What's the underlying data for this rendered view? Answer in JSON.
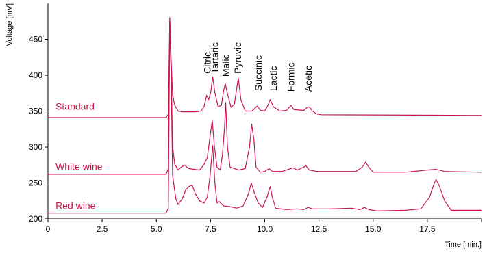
{
  "chart_data": {
    "type": "line",
    "title": "",
    "xlabel": "Time [min.]",
    "ylabel": "Voltage [mV]",
    "xlim": [
      0,
      20
    ],
    "ylim": [
      200,
      500
    ],
    "x_ticks": [
      0,
      2.5,
      5.0,
      7.5,
      10.0,
      12.5,
      15.0,
      17.5
    ],
    "x_tick_labels": [
      "0",
      "2.5",
      "5.0",
      "7.5",
      "10.0",
      "12.5",
      "15.0",
      "17.5"
    ],
    "y_ticks": [
      200,
      250,
      300,
      350,
      400,
      450
    ],
    "y_tick_labels": [
      "200",
      "250",
      "300",
      "350",
      "400",
      "450"
    ],
    "grid": false,
    "line_color": "#c8174a",
    "peak_labels": [
      {
        "text": "Citric",
        "x": 7.35,
        "y": 402
      },
      {
        "text": "Tartaric",
        "x": 7.7,
        "y": 402
      },
      {
        "text": "Malic",
        "x": 8.2,
        "y": 398
      },
      {
        "text": "Pyruvic",
        "x": 8.75,
        "y": 402
      },
      {
        "text": "Succinic",
        "x": 9.7,
        "y": 378
      },
      {
        "text": "Lactic",
        "x": 10.4,
        "y": 378
      },
      {
        "text": "Formic",
        "x": 11.2,
        "y": 377
      },
      {
        "text": "Acetic",
        "x": 12.0,
        "y": 377
      }
    ],
    "series": [
      {
        "name": "Standard",
        "label_pos": [
          0.35,
          352
        ],
        "baseline_start": 341,
        "baseline_end": 344,
        "points": [
          [
            0.0,
            341
          ],
          [
            5.45,
            341
          ],
          [
            5.55,
            346
          ],
          [
            5.62,
            480
          ],
          [
            5.67,
            430
          ],
          [
            5.75,
            372
          ],
          [
            5.85,
            358
          ],
          [
            6.0,
            350
          ],
          [
            6.2,
            349
          ],
          [
            6.8,
            349
          ],
          [
            7.05,
            350
          ],
          [
            7.2,
            356
          ],
          [
            7.32,
            372
          ],
          [
            7.42,
            366
          ],
          [
            7.52,
            378
          ],
          [
            7.6,
            398
          ],
          [
            7.7,
            376
          ],
          [
            7.85,
            356
          ],
          [
            8.0,
            358
          ],
          [
            8.1,
            378
          ],
          [
            8.18,
            388
          ],
          [
            8.3,
            372
          ],
          [
            8.45,
            355
          ],
          [
            8.6,
            360
          ],
          [
            8.7,
            380
          ],
          [
            8.78,
            396
          ],
          [
            8.9,
            366
          ],
          [
            9.1,
            350
          ],
          [
            9.4,
            350
          ],
          [
            9.55,
            354
          ],
          [
            9.65,
            357
          ],
          [
            9.8,
            351
          ],
          [
            10.0,
            350
          ],
          [
            10.15,
            358
          ],
          [
            10.25,
            366
          ],
          [
            10.4,
            356
          ],
          [
            10.7,
            350
          ],
          [
            11.0,
            351
          ],
          [
            11.15,
            356
          ],
          [
            11.22,
            358
          ],
          [
            11.35,
            352
          ],
          [
            11.8,
            351
          ],
          [
            11.95,
            355
          ],
          [
            12.05,
            356
          ],
          [
            12.2,
            350
          ],
          [
            12.4,
            346
          ],
          [
            12.6,
            345
          ],
          [
            20.0,
            344
          ]
        ]
      },
      {
        "name": "White wine",
        "label_pos": [
          0.35,
          268
        ],
        "baseline_start": 262,
        "baseline_end": 265,
        "points": [
          [
            0.0,
            262
          ],
          [
            5.45,
            262
          ],
          [
            5.55,
            270
          ],
          [
            5.62,
            478
          ],
          [
            5.67,
            420
          ],
          [
            5.75,
            300
          ],
          [
            5.85,
            276
          ],
          [
            6.0,
            268
          ],
          [
            6.15,
            272
          ],
          [
            6.3,
            275
          ],
          [
            6.5,
            270
          ],
          [
            7.0,
            268
          ],
          [
            7.2,
            276
          ],
          [
            7.35,
            285
          ],
          [
            7.5,
            320
          ],
          [
            7.58,
            337
          ],
          [
            7.68,
            300
          ],
          [
            7.8,
            272
          ],
          [
            7.95,
            268
          ],
          [
            8.05,
            290
          ],
          [
            8.15,
            328
          ],
          [
            8.2,
            362
          ],
          [
            8.28,
            300
          ],
          [
            8.4,
            272
          ],
          [
            8.8,
            268
          ],
          [
            9.1,
            270
          ],
          [
            9.3,
            300
          ],
          [
            9.4,
            332
          ],
          [
            9.5,
            310
          ],
          [
            9.6,
            272
          ],
          [
            9.8,
            265
          ],
          [
            10.0,
            266
          ],
          [
            10.2,
            270
          ],
          [
            10.35,
            266
          ],
          [
            10.8,
            266
          ],
          [
            11.3,
            271
          ],
          [
            11.5,
            268
          ],
          [
            11.8,
            272
          ],
          [
            11.9,
            274
          ],
          [
            12.05,
            268
          ],
          [
            12.4,
            266
          ],
          [
            14.2,
            266
          ],
          [
            14.5,
            272
          ],
          [
            14.65,
            279
          ],
          [
            14.8,
            272
          ],
          [
            15.0,
            265
          ],
          [
            16.5,
            265
          ],
          [
            17.5,
            268
          ],
          [
            17.9,
            269
          ],
          [
            18.3,
            266
          ],
          [
            20.0,
            265
          ]
        ]
      },
      {
        "name": "Red wine",
        "label_pos": [
          0.35,
          214
        ],
        "baseline_start": 208,
        "baseline_end": 212,
        "points": [
          [
            0.0,
            208
          ],
          [
            5.45,
            208
          ],
          [
            5.55,
            215
          ],
          [
            5.62,
            476
          ],
          [
            5.68,
            400
          ],
          [
            5.75,
            260
          ],
          [
            5.9,
            228
          ],
          [
            6.0,
            220
          ],
          [
            6.2,
            228
          ],
          [
            6.35,
            240
          ],
          [
            6.5,
            245
          ],
          [
            6.65,
            247
          ],
          [
            6.8,
            235
          ],
          [
            7.0,
            225
          ],
          [
            7.2,
            222
          ],
          [
            7.35,
            230
          ],
          [
            7.48,
            260
          ],
          [
            7.6,
            302
          ],
          [
            7.7,
            250
          ],
          [
            7.8,
            222
          ],
          [
            7.9,
            224
          ],
          [
            8.1,
            218
          ],
          [
            8.4,
            217
          ],
          [
            8.7,
            215
          ],
          [
            9.0,
            218
          ],
          [
            9.25,
            235
          ],
          [
            9.38,
            250
          ],
          [
            9.5,
            238
          ],
          [
            9.7,
            222
          ],
          [
            9.9,
            216
          ],
          [
            10.1,
            230
          ],
          [
            10.25,
            245
          ],
          [
            10.35,
            230
          ],
          [
            10.5,
            215
          ],
          [
            11.0,
            213
          ],
          [
            11.5,
            214
          ],
          [
            11.8,
            213
          ],
          [
            12.0,
            216
          ],
          [
            12.2,
            214
          ],
          [
            13.0,
            214
          ],
          [
            14.0,
            215
          ],
          [
            14.4,
            213
          ],
          [
            14.6,
            216
          ],
          [
            14.8,
            213
          ],
          [
            15.2,
            211
          ],
          [
            16.5,
            212
          ],
          [
            17.2,
            214
          ],
          [
            17.6,
            230
          ],
          [
            17.8,
            248
          ],
          [
            17.9,
            255
          ],
          [
            18.05,
            246
          ],
          [
            18.3,
            225
          ],
          [
            18.6,
            212
          ],
          [
            20.0,
            212
          ]
        ]
      }
    ]
  }
}
